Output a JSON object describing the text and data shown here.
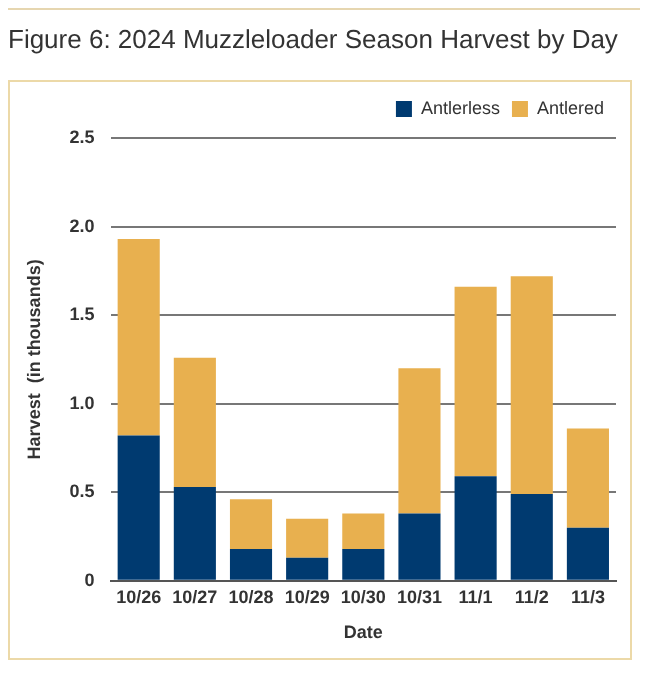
{
  "chart_data": {
    "type": "bar",
    "title": "Figure 6: 2024 Muzzleloader Season Harvest by Day",
    "xlabel": "Date",
    "ylabel": "Harvest  (in thousands)",
    "categories": [
      "10/26",
      "10/27",
      "10/28",
      "10/29",
      "10/30",
      "10/31",
      "11/1",
      "11/2",
      "11/3"
    ],
    "series": [
      {
        "name": "Antlerless",
        "color": "#003a70",
        "values": [
          0.82,
          0.53,
          0.18,
          0.13,
          0.18,
          0.38,
          0.59,
          0.49,
          0.3
        ]
      },
      {
        "name": "Antlered",
        "color": "#e8b04f",
        "values": [
          1.11,
          0.73,
          0.28,
          0.22,
          0.2,
          0.82,
          1.07,
          1.23,
          0.56
        ]
      }
    ],
    "stacked": true,
    "ylim": [
      0,
      2.5
    ],
    "yticks": [
      0,
      {
        "value": 0.5,
        "label": "0.5"
      },
      {
        "value": 1,
        "label": "1.0"
      },
      {
        "value": 1.5,
        "label": "1.5"
      },
      {
        "value": 2,
        "label": "2.0"
      },
      {
        "value": 2.5,
        "label": "2.5"
      }
    ],
    "grid": "y",
    "legend": "top right"
  }
}
